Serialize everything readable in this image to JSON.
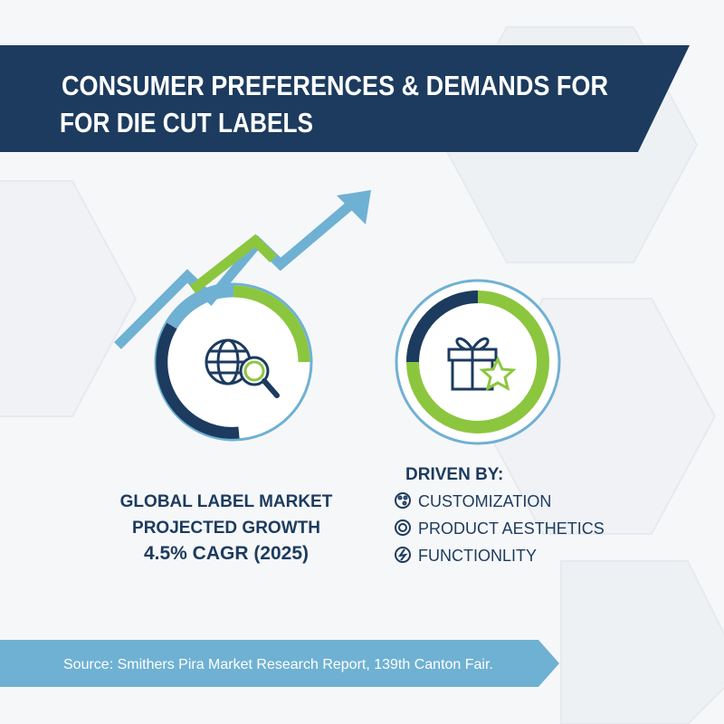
{
  "header": {
    "title_lines": [
      "CONSUMER PREFERENCES & DEMANDS FOR",
      "FOR DIE CUT LABELS"
    ]
  },
  "growth": {
    "lines": [
      "GLOBAL LABEL MARKET",
      "PROJECTED GROWTH",
      "4.5% CAGR (2025)"
    ]
  },
  "drivers": {
    "heading": "DRIVEN BY:",
    "items": [
      "CUSTOMIZATION",
      "PRODUCT AESTHETICS",
      "FUNCTIONLITY"
    ]
  },
  "footer": {
    "source": "Source: Smithers Pira Market Research Report, 139th Canton Fair."
  }
}
